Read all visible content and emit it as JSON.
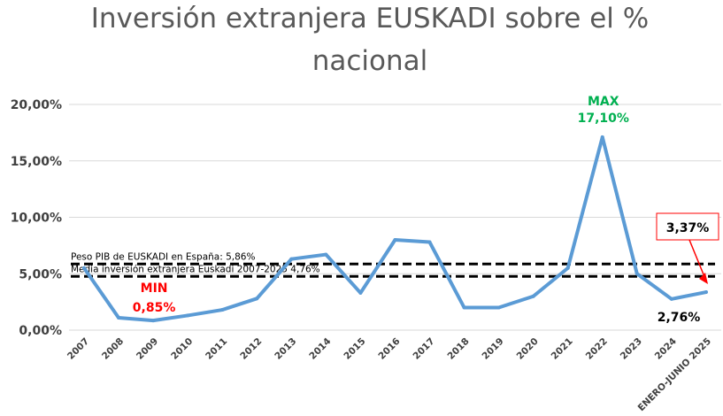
{
  "title_line1": "Inversión extranjera EUSKADI sobre el %",
  "title_line2": "nacional",
  "chart_data": {
    "type": "line",
    "title": "Inversión extranjera EUSKADI sobre el % nacional",
    "xlabel": "",
    "ylabel": "",
    "ylim": [
      0,
      20
    ],
    "y_ticks": [
      "0,00%",
      "5,00%",
      "10,00%",
      "15,00%",
      "20,00%"
    ],
    "grid": true,
    "categories": [
      "2007",
      "2008",
      "2009",
      "2010",
      "2011",
      "2012",
      "2013",
      "2014",
      "2015",
      "2016",
      "2017",
      "2018",
      "2019",
      "2020",
      "2021",
      "2022",
      "2023",
      "2024",
      "ENERO-JUNIO 2025"
    ],
    "series": [
      {
        "values": [
          5.5,
          1.1,
          0.85,
          1.3,
          1.8,
          2.8,
          6.3,
          6.7,
          3.3,
          8.0,
          7.8,
          2.0,
          2.0,
          3.0,
          5.5,
          17.1,
          5.0,
          2.76,
          3.37
        ],
        "color": "#5b9bd5"
      }
    ],
    "reference_lines": [
      {
        "label": "Peso PIB de EUSKADI en España: 5,86%",
        "value": 5.86
      },
      {
        "label": "Media inversión extranjera Euskadi 2007-2025 4,76%",
        "value": 4.76
      }
    ],
    "annotations": [
      {
        "id": "min",
        "text_line1": "MIN",
        "text_line2": "0,85%",
        "color": "#ff0000"
      },
      {
        "id": "max",
        "text_line1": "MAX",
        "text_line2": "17,10%",
        "color": "#00b050"
      },
      {
        "id": "last",
        "text": "3,37%",
        "color": "#000000",
        "box_border": "#ff0000"
      },
      {
        "id": "prev",
        "text": "2,76%",
        "color": "#000000"
      }
    ]
  }
}
